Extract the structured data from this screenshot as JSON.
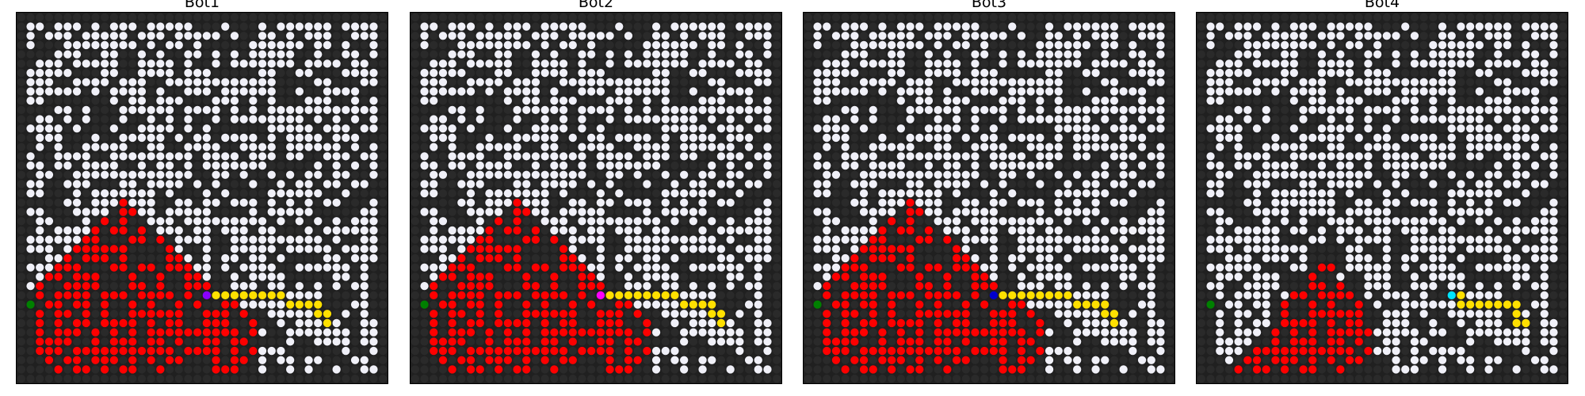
{
  "figure": {
    "grid_size": 40,
    "background_cell_color": "#2a2a2a",
    "legend_colors": {
      "wall": "#2a2a2a",
      "open": "#f0f0f8",
      "explored": "#ff0000",
      "path": "#ffe000",
      "goal": "#008000"
    }
  },
  "chart_data": [
    {
      "type": "heatmap",
      "title": "Bot1",
      "bot_color": "#8a00ff",
      "bot": [
        20,
        30
      ],
      "goal": [
        0,
        31
      ],
      "path": [
        [
          21,
          30
        ],
        [
          22,
          30
        ],
        [
          23,
          30
        ],
        [
          24,
          30
        ],
        [
          25,
          30
        ],
        [
          26,
          30
        ],
        [
          27,
          30
        ],
        [
          28,
          30
        ],
        [
          29,
          31
        ],
        [
          30,
          31
        ],
        [
          31,
          31
        ],
        [
          32,
          31
        ],
        [
          32,
          32
        ],
        [
          33,
          32
        ],
        [
          33,
          33
        ]
      ],
      "explored_shape": {
        "peak_col": 11,
        "peak_row": 20,
        "left_col": 1,
        "right_col": 25,
        "base_row": 39,
        "slope": 0.95
      }
    },
    {
      "type": "heatmap",
      "title": "Bot2",
      "bot_color": "#ff00ff",
      "bot": [
        20,
        30
      ],
      "goal": [
        0,
        31
      ],
      "path": [
        [
          21,
          30
        ],
        [
          22,
          30
        ],
        [
          23,
          30
        ],
        [
          24,
          30
        ],
        [
          25,
          30
        ],
        [
          26,
          30
        ],
        [
          27,
          30
        ],
        [
          28,
          30
        ],
        [
          29,
          31
        ],
        [
          30,
          31
        ],
        [
          31,
          31
        ],
        [
          32,
          31
        ],
        [
          32,
          32
        ],
        [
          33,
          32
        ],
        [
          33,
          33
        ]
      ],
      "explored_shape": {
        "peak_col": 11,
        "peak_row": 20,
        "left_col": 1,
        "right_col": 25,
        "base_row": 39,
        "slope": 0.95
      }
    },
    {
      "type": "heatmap",
      "title": "Bot3",
      "bot_color": "#0000cc",
      "bot": [
        20,
        30
      ],
      "goal": [
        0,
        31
      ],
      "path": [
        [
          21,
          30
        ],
        [
          22,
          30
        ],
        [
          23,
          30
        ],
        [
          24,
          30
        ],
        [
          25,
          30
        ],
        [
          26,
          30
        ],
        [
          27,
          30
        ],
        [
          28,
          30
        ],
        [
          29,
          31
        ],
        [
          30,
          31
        ],
        [
          31,
          31
        ],
        [
          32,
          31
        ],
        [
          32,
          32
        ],
        [
          33,
          32
        ],
        [
          33,
          33
        ]
      ],
      "explored_shape": {
        "peak_col": 11,
        "peak_row": 20,
        "left_col": 1,
        "right_col": 25,
        "base_row": 39,
        "slope": 0.95
      }
    },
    {
      "type": "heatmap",
      "title": "Bot4",
      "bot_color": "#00e5ff",
      "bot": [
        27,
        30
      ],
      "goal": [
        0,
        31
      ],
      "path": [
        [
          28,
          30
        ],
        [
          28,
          31
        ],
        [
          29,
          31
        ],
        [
          30,
          31
        ],
        [
          31,
          31
        ],
        [
          32,
          31
        ],
        [
          33,
          31
        ],
        [
          34,
          31
        ],
        [
          34,
          32
        ],
        [
          34,
          33
        ],
        [
          35,
          33
        ]
      ],
      "explored_shape": {
        "peak_col": 13,
        "peak_row": 26,
        "left_col": 1,
        "right_col": 18,
        "base_row": 39,
        "slope": 1.35
      }
    }
  ]
}
